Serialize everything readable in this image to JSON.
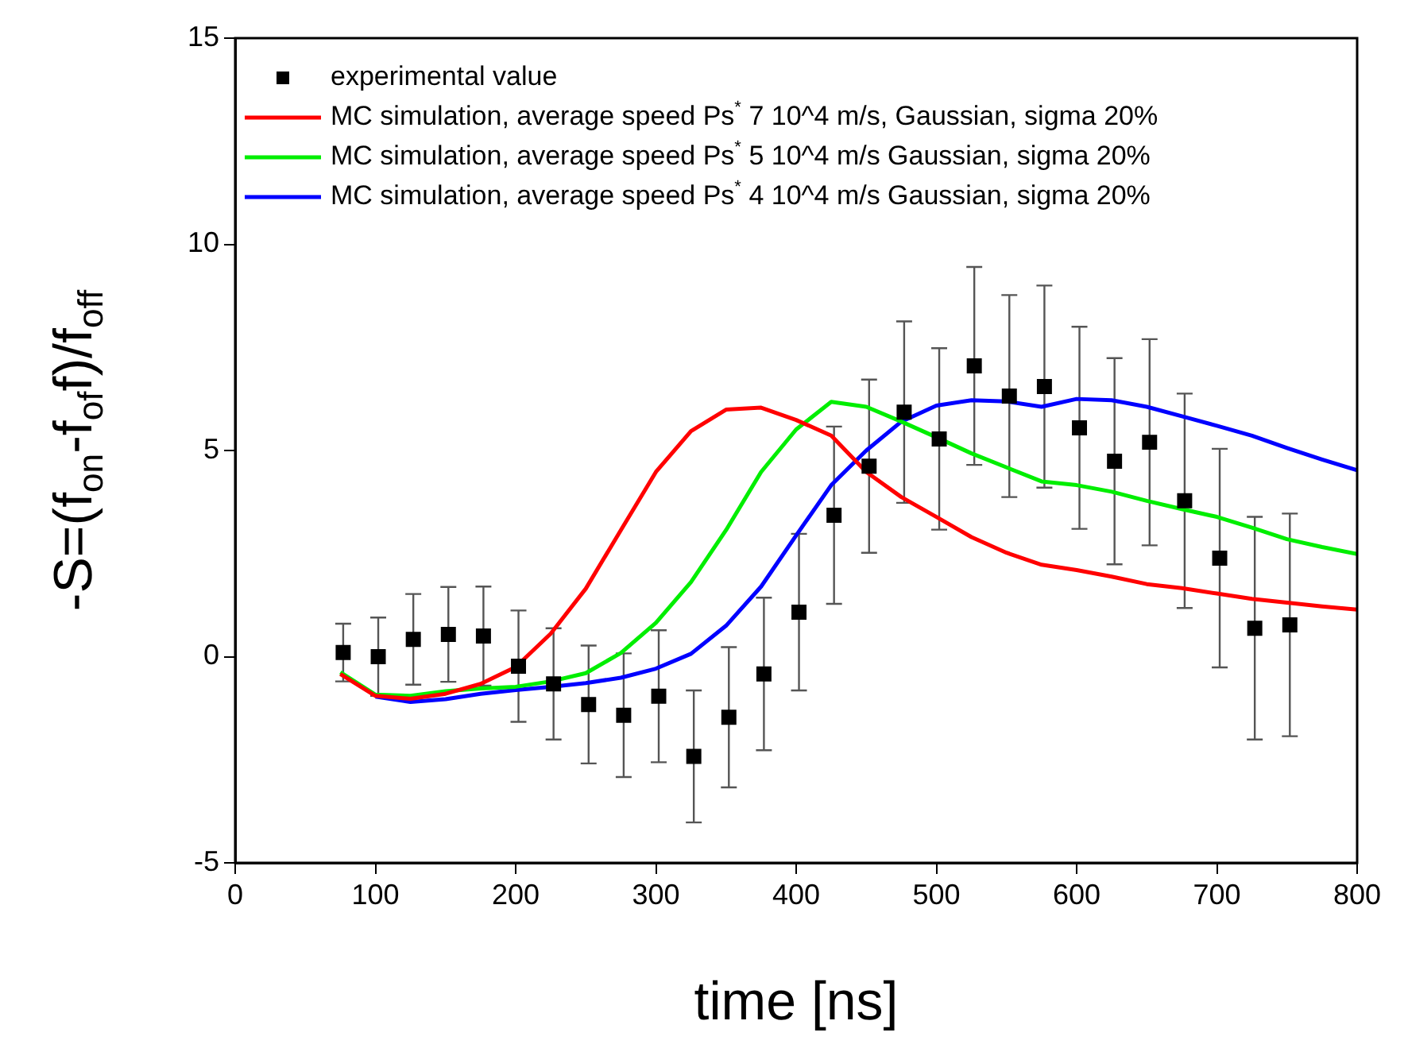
{
  "chart_data": {
    "type": "line",
    "xlabel": "time [ns]",
    "ylabel": "-S=(f$_{on}$-f$_{of}$f)/f$_{off}$",
    "xlim": [
      0,
      800
    ],
    "ylim": [
      -5,
      15
    ],
    "xticks": [
      0,
      100,
      200,
      300,
      400,
      500,
      600,
      700,
      800
    ],
    "yticks": [
      -5,
      0,
      5,
      10,
      15
    ],
    "legend": "top left",
    "grid": false,
    "series": [
      {
        "name": "experimental value",
        "type": "scatter",
        "marker": "square",
        "color": "#000000",
        "x": [
          77,
          102,
          127,
          152,
          177,
          202,
          227,
          252,
          277,
          302,
          327,
          352,
          377,
          402,
          427,
          452,
          477,
          502,
          527,
          552,
          577,
          602,
          627,
          652,
          677,
          702,
          727,
          752
        ],
        "values": [
          0.1,
          0.0,
          0.42,
          0.54,
          0.5,
          -0.23,
          -0.66,
          -1.16,
          -1.42,
          -0.96,
          -2.42,
          -1.47,
          -0.42,
          1.08,
          3.43,
          4.62,
          5.93,
          5.28,
          7.05,
          6.32,
          6.55,
          5.55,
          4.74,
          5.2,
          3.78,
          2.39,
          0.69,
          0.77
        ],
        "errors": [
          0.7,
          0.95,
          1.1,
          1.15,
          1.2,
          1.35,
          1.35,
          1.43,
          1.5,
          1.6,
          1.6,
          1.7,
          1.85,
          1.9,
          2.15,
          2.1,
          2.2,
          2.2,
          2.4,
          2.45,
          2.45,
          2.45,
          2.5,
          2.5,
          2.6,
          2.65,
          2.7,
          2.7
        ]
      },
      {
        "name": "MC simulation, average speed Ps$^{*}$ 7 10^4 m/s, Gaussian, sigma 20%",
        "marker": "none",
        "color": "#ff0000",
        "x": [
          75,
          100,
          125,
          150,
          175,
          200,
          225,
          250,
          275,
          300,
          325,
          350,
          375,
          400,
          425,
          450,
          475,
          500,
          525,
          550,
          575,
          600,
          625,
          650,
          675,
          700,
          725,
          750,
          775,
          800
        ],
        "values": [
          -0.42,
          -0.95,
          -1.02,
          -0.9,
          -0.66,
          -0.25,
          0.56,
          1.65,
          3.07,
          4.48,
          5.47,
          5.99,
          6.04,
          5.74,
          5.36,
          4.48,
          3.87,
          3.39,
          2.9,
          2.52,
          2.23,
          2.1,
          1.94,
          1.76,
          1.66,
          1.53,
          1.4,
          1.31,
          1.22,
          1.14
        ]
      },
      {
        "name": "MC simulation, average speed Ps$^{*}$ 5 10^4 m/s Gaussian, sigma 20%",
        "marker": "none",
        "color": "#00ee00",
        "x": [
          75,
          100,
          125,
          150,
          175,
          200,
          225,
          250,
          275,
          300,
          325,
          350,
          375,
          400,
          425,
          450,
          475,
          500,
          525,
          550,
          575,
          600,
          625,
          650,
          675,
          700,
          725,
          750,
          775,
          800
        ],
        "values": [
          -0.38,
          -0.92,
          -0.95,
          -0.84,
          -0.77,
          -0.73,
          -0.6,
          -0.4,
          0.09,
          0.82,
          1.81,
          3.07,
          4.48,
          5.51,
          6.18,
          6.06,
          5.7,
          5.32,
          4.93,
          4.59,
          4.25,
          4.16,
          4.0,
          3.78,
          3.58,
          3.39,
          3.13,
          2.85,
          2.66,
          2.49
        ]
      },
      {
        "name": "MC simulation, average speed Ps$^{*}$ 4 10^4 m/s Gaussian, sigma 20%",
        "marker": "none",
        "color": "#0000ff",
        "x": [
          100,
          125,
          150,
          175,
          200,
          225,
          250,
          275,
          300,
          325,
          350,
          375,
          400,
          425,
          450,
          475,
          500,
          525,
          550,
          575,
          600,
          625,
          650,
          675,
          700,
          725,
          750,
          775,
          800
        ],
        "values": [
          -0.97,
          -1.1,
          -1.03,
          -0.9,
          -0.81,
          -0.73,
          -0.64,
          -0.51,
          -0.29,
          0.07,
          0.75,
          1.7,
          2.94,
          4.16,
          5.0,
          5.7,
          6.09,
          6.22,
          6.19,
          6.06,
          6.25,
          6.22,
          6.06,
          5.83,
          5.6,
          5.36,
          5.06,
          4.78,
          4.52
        ]
      }
    ]
  }
}
